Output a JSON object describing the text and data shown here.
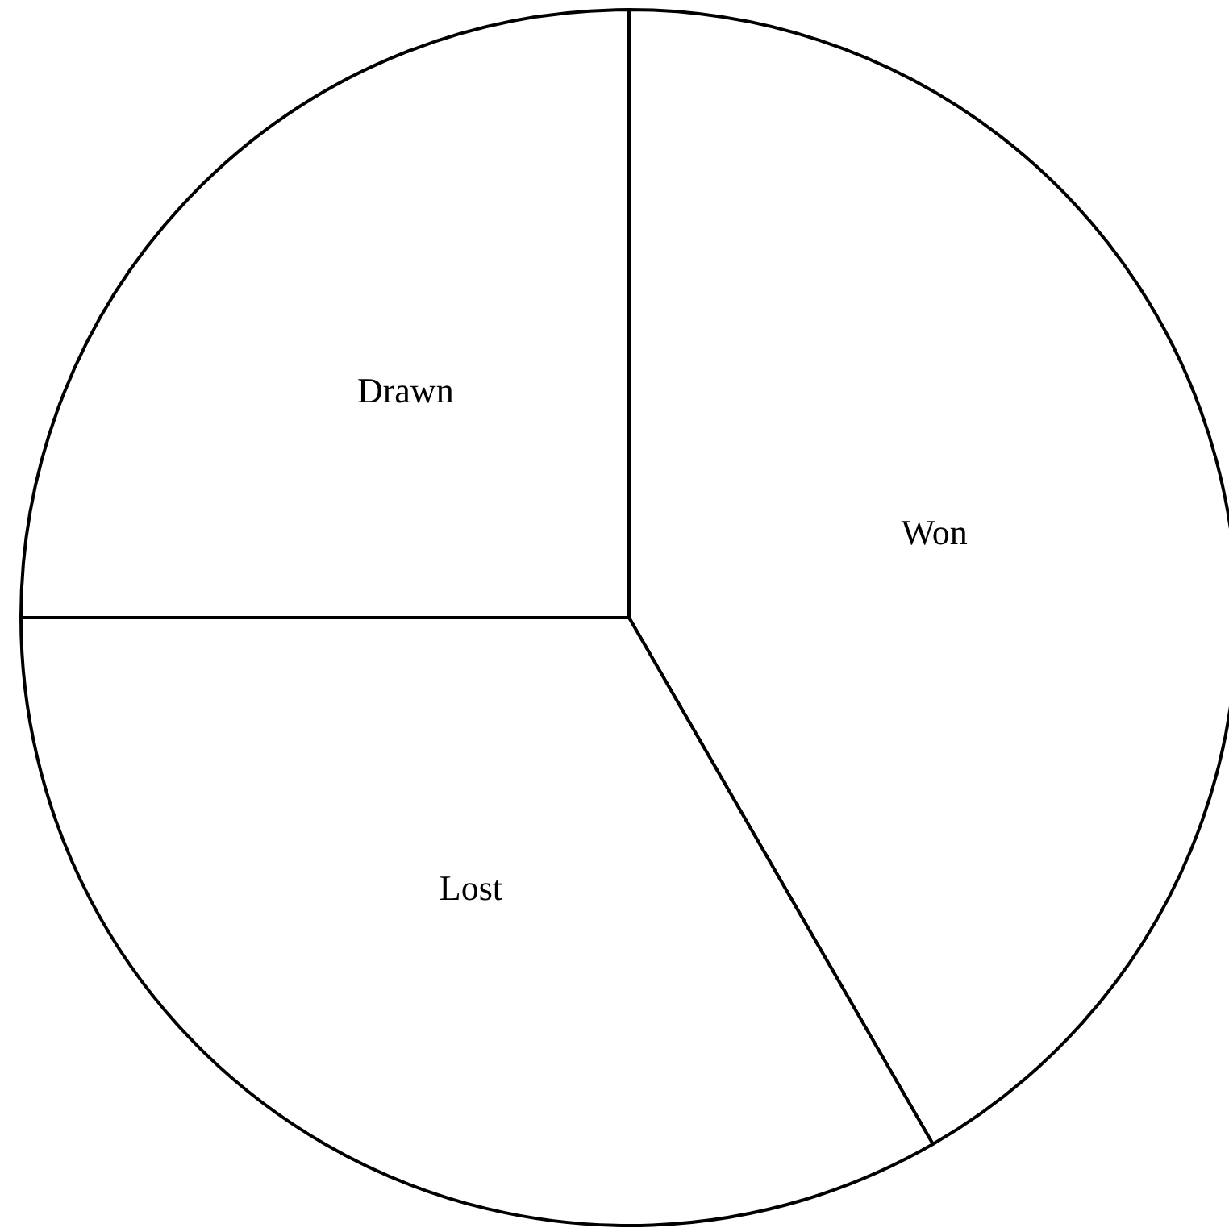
{
  "chart_data": {
    "type": "pie",
    "categories": [
      "Won",
      "Lost",
      "Drawn"
    ],
    "values": [
      41.67,
      33.33,
      25
    ],
    "colors": [
      "#ffffff",
      "#ffffff",
      "#ffffff"
    ]
  }
}
